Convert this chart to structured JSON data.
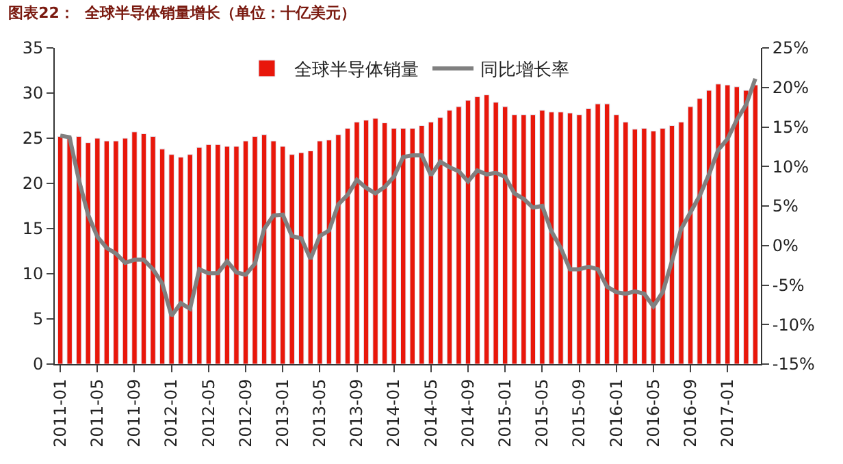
{
  "chart_data": {
    "type": "bar",
    "title": "图表22：  全球半导体销量增长（单位：十亿美元）",
    "categories": [
      "2011-01",
      null,
      null,
      null,
      "2011-05",
      null,
      null,
      null,
      "2011-09",
      null,
      null,
      null,
      "2012-01",
      null,
      null,
      null,
      "2012-05",
      null,
      null,
      null,
      "2012-09",
      null,
      null,
      null,
      "2013-01",
      null,
      null,
      null,
      "2013-05",
      null,
      null,
      null,
      "2013-09",
      null,
      null,
      null,
      "2014-01",
      null,
      null,
      null,
      "2014-05",
      null,
      null,
      null,
      "2014-09",
      null,
      null,
      null,
      "2015-01",
      null,
      null,
      null,
      "2015-05",
      null,
      null,
      null,
      "2015-09",
      null,
      null,
      null,
      "2016-01",
      null,
      null,
      null,
      "2016-05",
      null,
      null,
      null,
      "2016-09",
      null,
      null,
      null,
      "2017-01",
      null,
      null,
      null
    ],
    "series": [
      {
        "name": "全球半导体销量",
        "color": "#e8170b",
        "values": [
          25.2,
          25.1,
          25.2,
          24.5,
          25.0,
          24.7,
          24.7,
          25.0,
          25.7,
          25.5,
          25.2,
          23.8,
          23.2,
          22.9,
          23.2,
          24.0,
          24.3,
          24.3,
          24.1,
          24.1,
          24.7,
          25.2,
          25.4,
          24.7,
          24.1,
          23.2,
          23.4,
          23.6,
          24.7,
          24.8,
          25.4,
          26.1,
          26.8,
          27.0,
          27.2,
          26.7,
          26.1,
          26.1,
          26.1,
          26.4,
          26.8,
          27.3,
          28.1,
          28.5,
          29.2,
          29.6,
          29.8,
          29.0,
          28.5,
          27.6,
          27.6,
          27.6,
          28.1,
          27.9,
          27.9,
          27.8,
          27.6,
          28.3,
          28.8,
          28.8,
          27.6,
          26.8,
          26.0,
          26.1,
          25.8,
          26.1,
          26.4,
          26.8,
          28.5,
          29.4,
          30.3,
          31.0,
          30.9,
          30.7,
          30.3,
          30.9
        ]
      },
      {
        "name": "同比增长率",
        "type": "line",
        "axis": "y2",
        "color": "#808080",
        "values": [
          13.9,
          13.7,
          8.3,
          3.9,
          1.1,
          -0.3,
          -1.0,
          -2.2,
          -1.8,
          -1.8,
          -3.0,
          -4.8,
          -8.9,
          -7.3,
          -8.0,
          -3.0,
          -3.5,
          -3.5,
          -2.0,
          -3.4,
          -3.7,
          -2.3,
          2.1,
          3.8,
          3.9,
          1.2,
          0.9,
          -1.7,
          1.2,
          1.9,
          5.2,
          6.4,
          8.3,
          7.3,
          6.6,
          7.4,
          8.7,
          11.2,
          11.4,
          11.4,
          8.9,
          10.6,
          9.9,
          9.4,
          8.1,
          9.5,
          9.0,
          9.2,
          8.7,
          6.6,
          5.9,
          4.8,
          5.0,
          1.8,
          -0.3,
          -3.0,
          -3.0,
          -2.7,
          -3.0,
          -5.2,
          -5.9,
          -6.1,
          -5.8,
          -6.1,
          -7.7,
          -5.9,
          -2.0,
          2.1,
          4.2,
          6.3,
          9.0,
          12.1,
          13.5,
          15.9,
          17.8,
          21.1
        ]
      }
    ],
    "ylim": [
      0,
      35
    ],
    "yticks": [
      0,
      5,
      10,
      15,
      20,
      25,
      30,
      35
    ],
    "y2lim": [
      -15,
      25
    ],
    "y2ticks": [
      {
        "value": -15,
        "label": "-15%"
      },
      {
        "value": -10,
        "label": "-10%"
      },
      {
        "value": -5,
        "label": "-5%"
      },
      {
        "value": 0,
        "label": "0%"
      },
      {
        "value": 5,
        "label": "5%"
      },
      {
        "value": 10,
        "label": "10%"
      },
      {
        "value": 15,
        "label": "15%"
      },
      {
        "value": 20,
        "label": "20%"
      },
      {
        "value": 25,
        "label": "25%"
      }
    ],
    "marker": "none",
    "line_style": "solid",
    "grid": false,
    "legend": "top"
  }
}
